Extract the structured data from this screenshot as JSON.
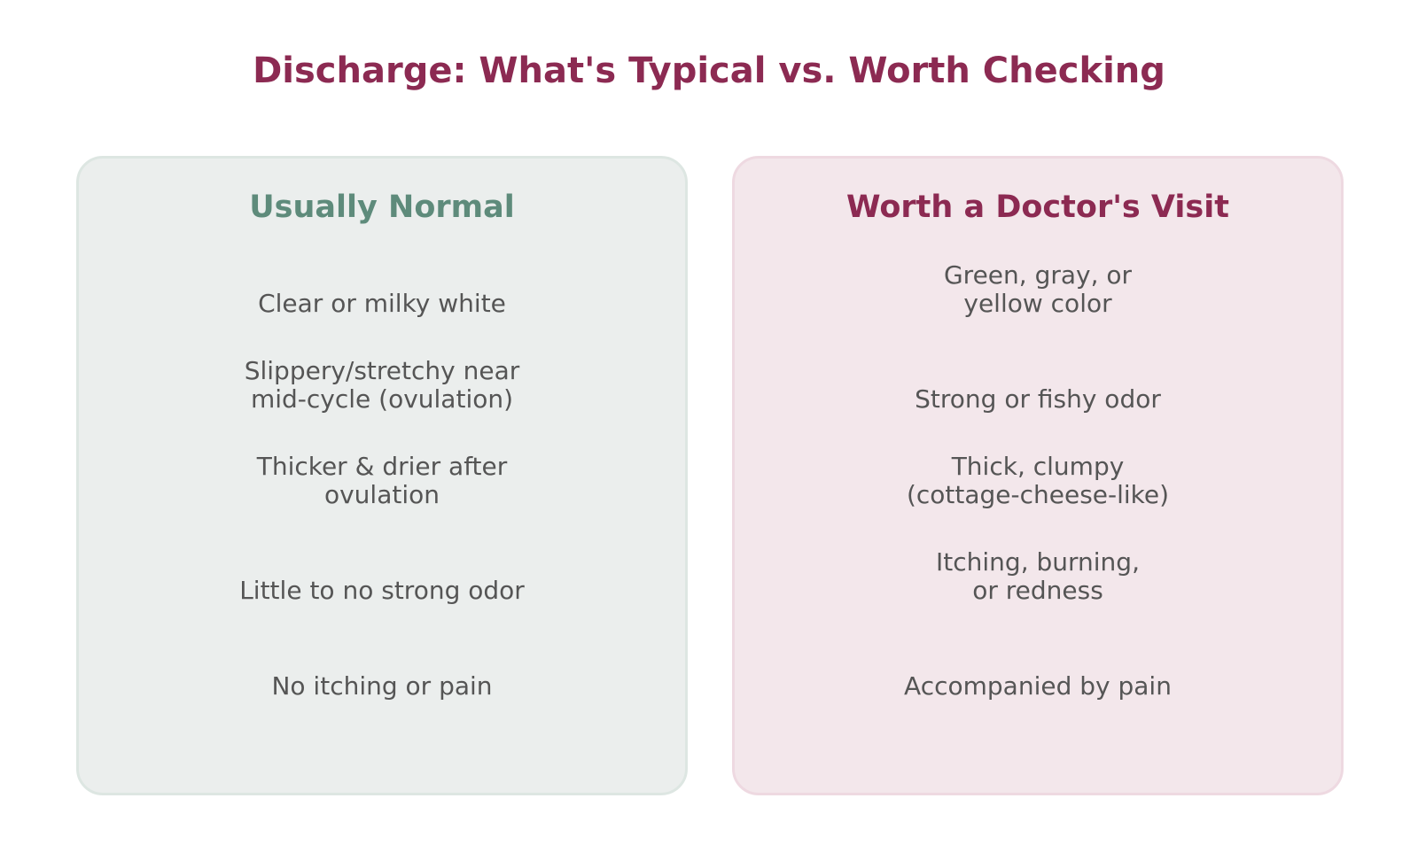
{
  "title": "Discharge: What's Typical vs. Worth Checking",
  "normal": {
    "heading": "Usually Normal",
    "items": [
      "Clear or milky white",
      "Slippery/stretchy near\nmid-cycle (ovulation)",
      "Thicker & drier after\novulation",
      "Little to no strong odor",
      "No itching or pain"
    ]
  },
  "visit": {
    "heading": "Worth a Doctor's Visit",
    "items": [
      "Green, gray, or\nyellow color",
      "Strong or fishy odor",
      "Thick, clumpy\n(cottage-cheese-like)",
      "Itching, burning,\nor redness",
      "Accompanied by pain"
    ]
  },
  "colors": {
    "accent": "#8c2a52",
    "normal_heading": "#5e8b7b",
    "normal_panel": "#ebeeed",
    "visit_panel": "#f3e7eb",
    "body_text": "#555555"
  }
}
